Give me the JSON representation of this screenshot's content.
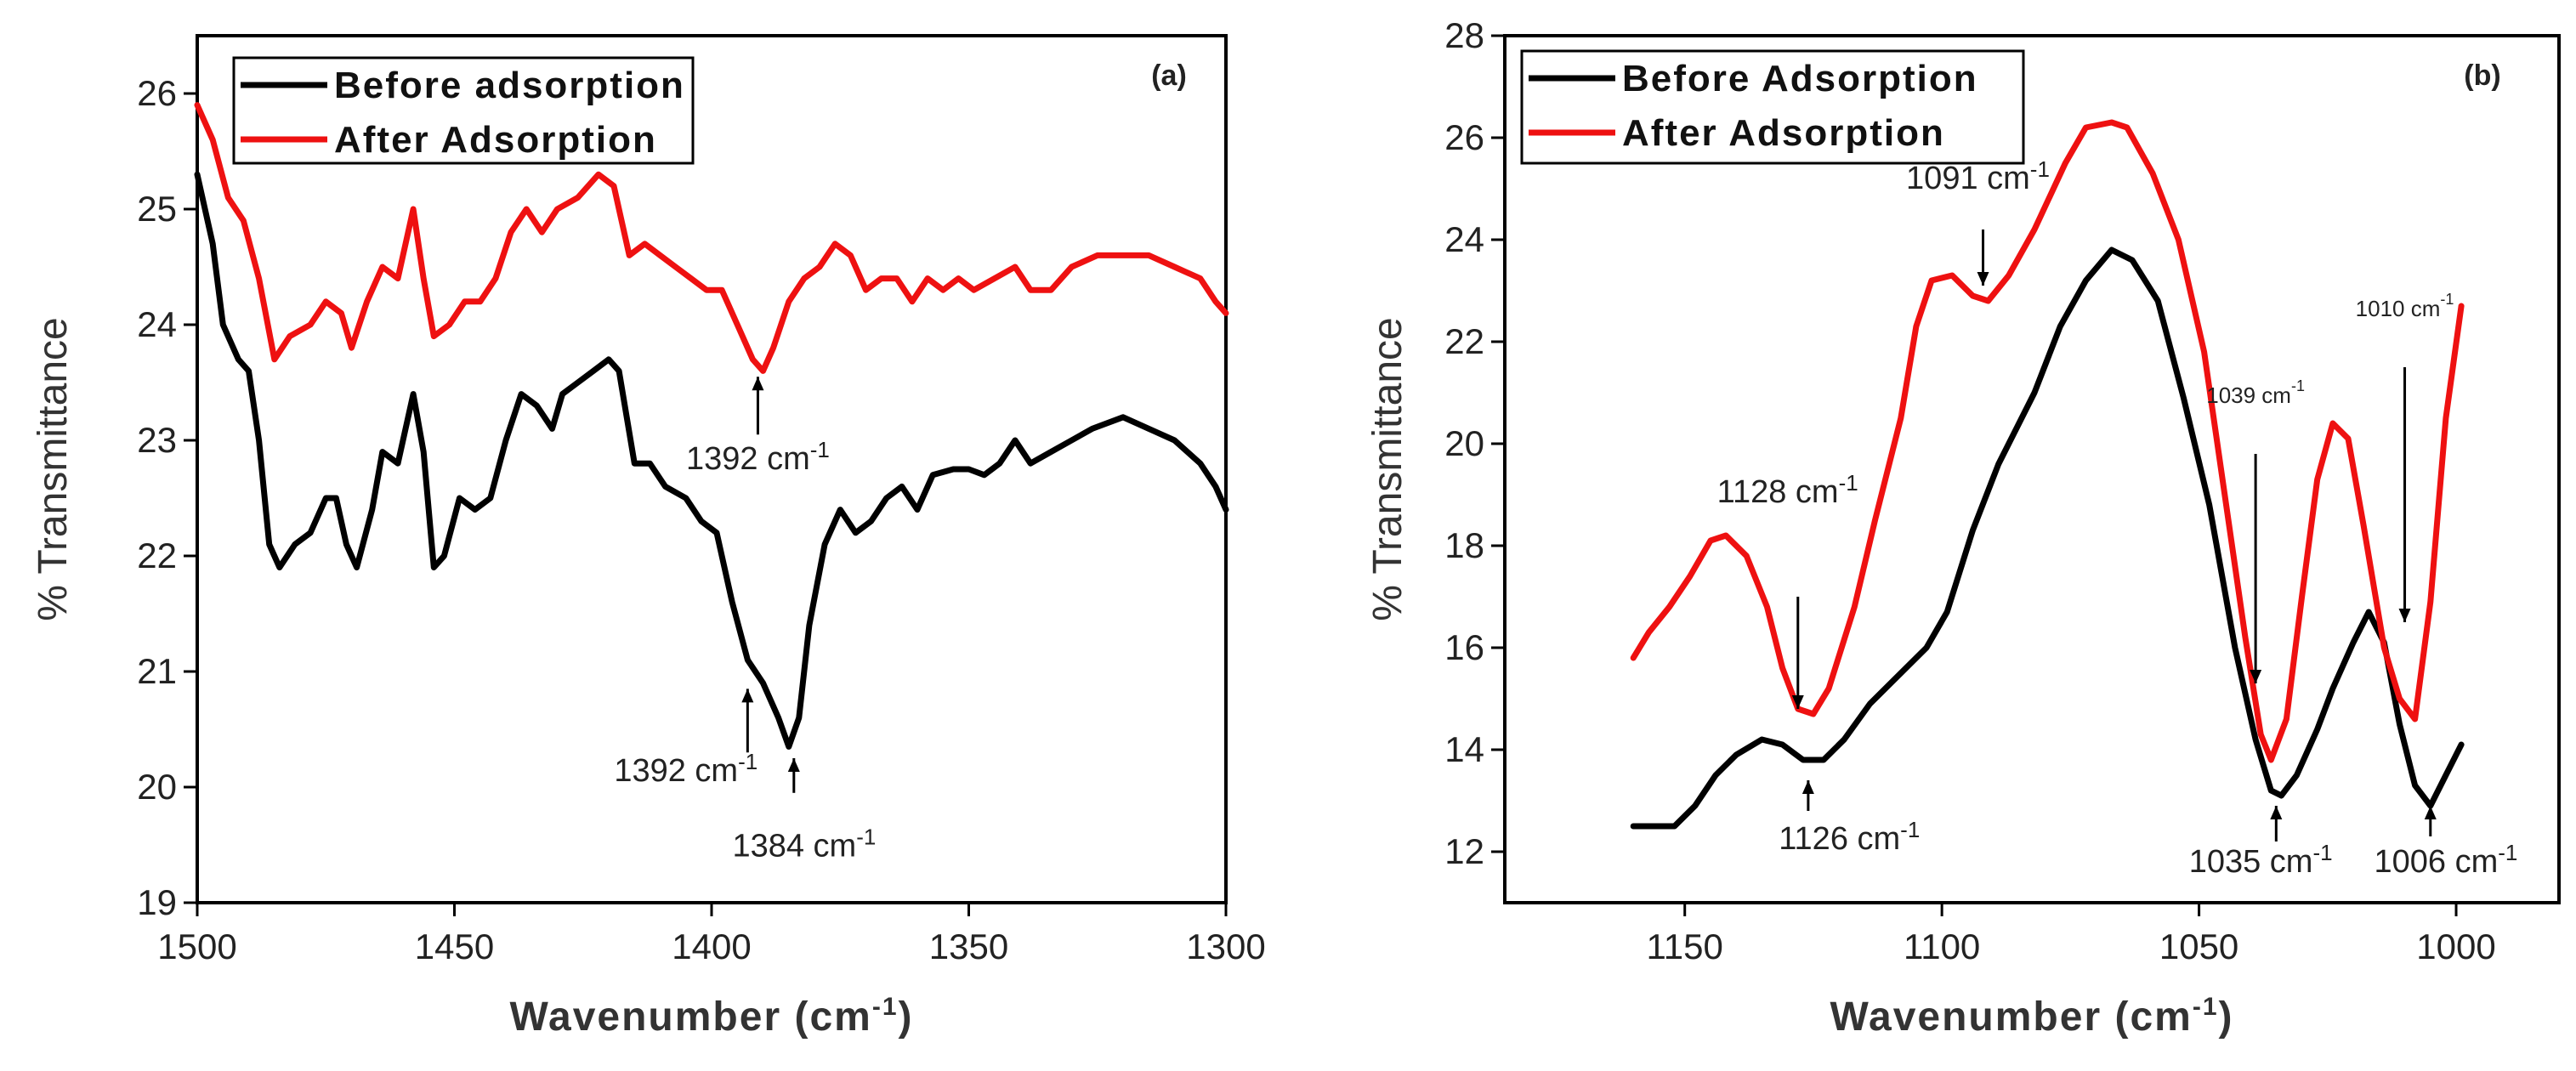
{
  "chart_data": [
    {
      "type": "line",
      "panel_label": "(a)",
      "xlabel": "Wavenumber (cm",
      "xlabel_sup": "-1",
      "xlabel_end": ")",
      "ylabel": "% Transmittance",
      "xlim": [
        1500,
        1300
      ],
      "ylim": [
        19,
        26.5
      ],
      "xticks": [
        "1500",
        "1450",
        "1400",
        "1350",
        "1300"
      ],
      "yticks": [
        "19",
        "20",
        "21",
        "22",
        "23",
        "24",
        "25",
        "26"
      ],
      "legend_position": "top-left",
      "series": [
        {
          "name": "Before adsorption",
          "color": "#000000",
          "points": [
            [
              1500,
              25.3
            ],
            [
              1497,
              24.7
            ],
            [
              1495,
              24.0
            ],
            [
              1492,
              23.7
            ],
            [
              1490,
              23.6
            ],
            [
              1488,
              23.0
            ],
            [
              1486,
              22.1
            ],
            [
              1484,
              21.9
            ],
            [
              1481,
              22.1
            ],
            [
              1478,
              22.2
            ],
            [
              1475,
              22.5
            ],
            [
              1473,
              22.5
            ],
            [
              1471,
              22.1
            ],
            [
              1469,
              21.9
            ],
            [
              1466,
              22.4
            ],
            [
              1464,
              22.9
            ],
            [
              1461,
              22.8
            ],
            [
              1458,
              23.4
            ],
            [
              1456,
              22.9
            ],
            [
              1454,
              21.9
            ],
            [
              1452,
              22.0
            ],
            [
              1449,
              22.5
            ],
            [
              1446,
              22.4
            ],
            [
              1443,
              22.5
            ],
            [
              1440,
              23.0
            ],
            [
              1437,
              23.4
            ],
            [
              1434,
              23.3
            ],
            [
              1431,
              23.1
            ],
            [
              1429,
              23.4
            ],
            [
              1426,
              23.5
            ],
            [
              1423,
              23.6
            ],
            [
              1420,
              23.7
            ],
            [
              1418,
              23.6
            ],
            [
              1415,
              22.8
            ],
            [
              1412,
              22.8
            ],
            [
              1409,
              22.6
            ],
            [
              1405,
              22.5
            ],
            [
              1402,
              22.3
            ],
            [
              1399,
              22.2
            ],
            [
              1396,
              21.6
            ],
            [
              1393,
              21.1
            ],
            [
              1390,
              20.9
            ],
            [
              1387,
              20.6
            ],
            [
              1385,
              20.35
            ],
            [
              1383,
              20.6
            ],
            [
              1381,
              21.4
            ],
            [
              1378,
              22.1
            ],
            [
              1375,
              22.4
            ],
            [
              1372,
              22.2
            ],
            [
              1369,
              22.3
            ],
            [
              1366,
              22.5
            ],
            [
              1363,
              22.6
            ],
            [
              1360,
              22.4
            ],
            [
              1357,
              22.7
            ],
            [
              1353,
              22.75
            ],
            [
              1350,
              22.75
            ],
            [
              1347,
              22.7
            ],
            [
              1344,
              22.8
            ],
            [
              1341,
              23.0
            ],
            [
              1338,
              22.8
            ],
            [
              1334,
              22.9
            ],
            [
              1330,
              23.0
            ],
            [
              1326,
              23.1
            ],
            [
              1320,
              23.2
            ],
            [
              1315,
              23.1
            ],
            [
              1310,
              23.0
            ],
            [
              1305,
              22.8
            ],
            [
              1302,
              22.6
            ],
            [
              1300,
              22.4
            ]
          ]
        },
        {
          "name": "After Adsorption",
          "color": "#ee1111",
          "points": [
            [
              1500,
              25.9
            ],
            [
              1497,
              25.6
            ],
            [
              1494,
              25.1
            ],
            [
              1491,
              24.9
            ],
            [
              1488,
              24.4
            ],
            [
              1485,
              23.7
            ],
            [
              1482,
              23.9
            ],
            [
              1478,
              24.0
            ],
            [
              1475,
              24.2
            ],
            [
              1472,
              24.1
            ],
            [
              1470,
              23.8
            ],
            [
              1467,
              24.2
            ],
            [
              1464,
              24.5
            ],
            [
              1461,
              24.4
            ],
            [
              1458,
              25.0
            ],
            [
              1456,
              24.4
            ],
            [
              1454,
              23.9
            ],
            [
              1451,
              24.0
            ],
            [
              1448,
              24.2
            ],
            [
              1445,
              24.2
            ],
            [
              1442,
              24.4
            ],
            [
              1439,
              24.8
            ],
            [
              1436,
              25.0
            ],
            [
              1433,
              24.8
            ],
            [
              1430,
              25.0
            ],
            [
              1426,
              25.1
            ],
            [
              1422,
              25.3
            ],
            [
              1419,
              25.2
            ],
            [
              1416,
              24.6
            ],
            [
              1413,
              24.7
            ],
            [
              1410,
              24.6
            ],
            [
              1407,
              24.5
            ],
            [
              1404,
              24.4
            ],
            [
              1401,
              24.3
            ],
            [
              1398,
              24.3
            ],
            [
              1395,
              24.0
            ],
            [
              1392,
              23.7
            ],
            [
              1390,
              23.6
            ],
            [
              1388,
              23.8
            ],
            [
              1385,
              24.2
            ],
            [
              1382,
              24.4
            ],
            [
              1379,
              24.5
            ],
            [
              1376,
              24.7
            ],
            [
              1373,
              24.6
            ],
            [
              1370,
              24.3
            ],
            [
              1367,
              24.4
            ],
            [
              1364,
              24.4
            ],
            [
              1361,
              24.2
            ],
            [
              1358,
              24.4
            ],
            [
              1355,
              24.3
            ],
            [
              1352,
              24.4
            ],
            [
              1349,
              24.3
            ],
            [
              1345,
              24.4
            ],
            [
              1341,
              24.5
            ],
            [
              1338,
              24.3
            ],
            [
              1334,
              24.3
            ],
            [
              1330,
              24.5
            ],
            [
              1325,
              24.6
            ],
            [
              1320,
              24.6
            ],
            [
              1315,
              24.6
            ],
            [
              1310,
              24.5
            ],
            [
              1305,
              24.4
            ],
            [
              1302,
              24.2
            ],
            [
              1300,
              24.1
            ]
          ]
        }
      ],
      "annotations": [
        {
          "text": "1392 cm",
          "sup": "-1",
          "x": 1391,
          "y": 23.5,
          "ty": 22.75,
          "tx": 1391,
          "arrow_from_y": 23.05,
          "arrow_to_y": 23.55
        },
        {
          "text": "1392 cm",
          "sup": "-1",
          "x": 1393,
          "y": 20.7,
          "ty": 20.05,
          "tx": 1405,
          "arrow_from_y": 20.3,
          "arrow_to_y": 20.85
        },
        {
          "text": "1384 cm",
          "sup": "-1",
          "x": 1384,
          "y": 20.1,
          "ty": 19.4,
          "tx": 1382,
          "arrow_from_y": 19.95,
          "arrow_to_y": 20.25
        }
      ]
    },
    {
      "type": "line",
      "panel_label": "(b)",
      "xlabel": "Wavenumber (cm",
      "xlabel_sup": "-1",
      "xlabel_end": ")",
      "ylabel": "% Transmittance",
      "xlim": [
        1185,
        980
      ],
      "ylim": [
        11,
        28
      ],
      "xticks": [
        "1150",
        "1100",
        "1050",
        "1000"
      ],
      "yticks": [
        "12",
        "14",
        "16",
        "18",
        "20",
        "22",
        "24",
        "26",
        "28"
      ],
      "legend_position": "top-left",
      "series": [
        {
          "name": "Before Adsorption",
          "color": "#000000",
          "points": [
            [
              1160,
              12.5
            ],
            [
              1157,
              12.5
            ],
            [
              1152,
              12.5
            ],
            [
              1148,
              12.9
            ],
            [
              1144,
              13.5
            ],
            [
              1140,
              13.9
            ],
            [
              1135,
              14.2
            ],
            [
              1131,
              14.1
            ],
            [
              1127,
              13.8
            ],
            [
              1123,
              13.8
            ],
            [
              1119,
              14.2
            ],
            [
              1114,
              14.9
            ],
            [
              1109,
              15.4
            ],
            [
              1103,
              16.0
            ],
            [
              1099,
              16.7
            ],
            [
              1094,
              18.3
            ],
            [
              1089,
              19.6
            ],
            [
              1082,
              21.0
            ],
            [
              1077,
              22.3
            ],
            [
              1072,
              23.2
            ],
            [
              1067,
              23.8
            ],
            [
              1063,
              23.6
            ],
            [
              1058,
              22.8
            ],
            [
              1053,
              20.9
            ],
            [
              1048,
              18.8
            ],
            [
              1043,
              16.0
            ],
            [
              1039,
              14.2
            ],
            [
              1036,
              13.2
            ],
            [
              1034,
              13.1
            ],
            [
              1031,
              13.5
            ],
            [
              1027,
              14.4
            ],
            [
              1024,
              15.2
            ],
            [
              1020,
              16.1
            ],
            [
              1017,
              16.7
            ],
            [
              1014,
              16.1
            ],
            [
              1011,
              14.5
            ],
            [
              1008,
              13.3
            ],
            [
              1005,
              12.9
            ],
            [
              1002,
              13.5
            ],
            [
              999,
              14.1
            ]
          ]
        },
        {
          "name": "After Adsorption",
          "color": "#ee1111",
          "points": [
            [
              1160,
              15.8
            ],
            [
              1157,
              16.3
            ],
            [
              1153,
              16.8
            ],
            [
              1149,
              17.4
            ],
            [
              1145,
              18.1
            ],
            [
              1142,
              18.2
            ],
            [
              1138,
              17.8
            ],
            [
              1134,
              16.8
            ],
            [
              1131,
              15.6
            ],
            [
              1128,
              14.8
            ],
            [
              1125,
              14.7
            ],
            [
              1122,
              15.2
            ],
            [
              1117,
              16.8
            ],
            [
              1113,
              18.5
            ],
            [
              1108,
              20.5
            ],
            [
              1105,
              22.3
            ],
            [
              1102,
              23.2
            ],
            [
              1098,
              23.3
            ],
            [
              1094,
              22.9
            ],
            [
              1091,
              22.8
            ],
            [
              1087,
              23.3
            ],
            [
              1082,
              24.2
            ],
            [
              1076,
              25.5
            ],
            [
              1072,
              26.2
            ],
            [
              1067,
              26.3
            ],
            [
              1064,
              26.2
            ],
            [
              1059,
              25.3
            ],
            [
              1054,
              24.0
            ],
            [
              1049,
              21.8
            ],
            [
              1045,
              19.0
            ],
            [
              1041,
              16.2
            ],
            [
              1038,
              14.3
            ],
            [
              1036,
              13.8
            ],
            [
              1033,
              14.6
            ],
            [
              1030,
              17.0
            ],
            [
              1027,
              19.3
            ],
            [
              1024,
              20.4
            ],
            [
              1021,
              20.1
            ],
            [
              1018,
              18.4
            ],
            [
              1014,
              16.0
            ],
            [
              1011,
              15.0
            ],
            [
              1008,
              14.6
            ],
            [
              1005,
              16.9
            ],
            [
              1002,
              20.5
            ],
            [
              999,
              22.7
            ]
          ]
        }
      ],
      "annotations": [
        {
          "text": "1091 cm",
          "sup": "-1",
          "x": 1092,
          "y": 22.9,
          "ty": 25.0,
          "tx": 1093,
          "arrow_from_y": 24.2,
          "arrow_to_y": 23.1
        },
        {
          "text": "1128 cm",
          "sup": "-1",
          "x": 1128,
          "y": 14.7,
          "ty": 18.85,
          "tx": 1130,
          "arrow_from_y": 17.0,
          "arrow_to_y": 14.8
        },
        {
          "text": "1126 cm",
          "sup": "-1",
          "x": 1126,
          "y": 13.6,
          "ty": 12.05,
          "tx": 1118,
          "arrow_from_y": 12.8,
          "arrow_to_y": 13.4
        },
        {
          "text": "1039 cm",
          "sup": "-1",
          "x": 1039,
          "y": 15.3,
          "ty": 20.8,
          "tx": 1039,
          "arrow_from_y": 19.8,
          "arrow_to_y": 15.3,
          "small": true
        },
        {
          "text": "1035 cm",
          "sup": "-1",
          "x": 1035,
          "y": 13.0,
          "ty": 11.6,
          "tx": 1038,
          "arrow_from_y": 12.2,
          "arrow_to_y": 12.9
        },
        {
          "text": "1010 cm",
          "sup": "-1",
          "x": 1010,
          "y": 16.5,
          "ty": 22.5,
          "tx": 1010,
          "arrow_from_y": 21.5,
          "arrow_to_y": 16.5,
          "small": true
        },
        {
          "text": "1006 cm",
          "sup": "-1",
          "x": 1005,
          "y": 12.9,
          "ty": 11.6,
          "tx": 1002,
          "arrow_from_y": 12.3,
          "arrow_to_y": 12.9
        }
      ]
    }
  ]
}
